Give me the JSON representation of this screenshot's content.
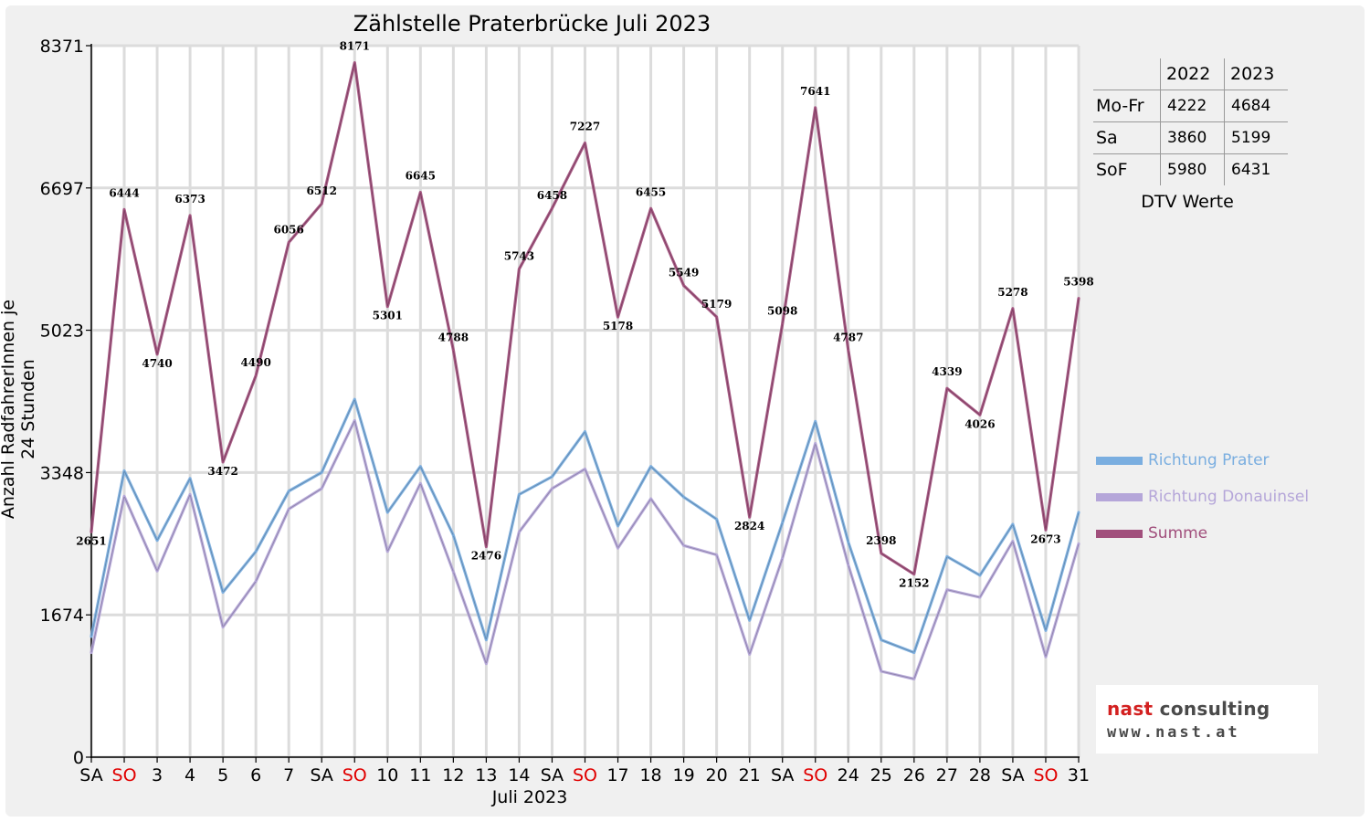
{
  "chart_data": {
    "type": "line",
    "title": "Zählstelle Praterbrücke Juli 2023",
    "xlabel": "Juli 2023",
    "ylabel": "Anzahl RadfahrerInnen je 24 Stunden",
    "ylim": [
      0,
      8371
    ],
    "yticks": [
      0,
      1674,
      3348,
      5023,
      6697,
      8371
    ],
    "grid": true,
    "legend_position": "right",
    "x": [
      1,
      2,
      3,
      4,
      5,
      6,
      7,
      8,
      9,
      10,
      11,
      12,
      13,
      14,
      15,
      16,
      17,
      18,
      19,
      20,
      21,
      22,
      23,
      24,
      25,
      26,
      27,
      28,
      29,
      30,
      31
    ],
    "xtick_labels": [
      "SA",
      "SO",
      "3",
      "4",
      "5",
      "6",
      "7",
      "SA",
      "SO",
      "10",
      "11",
      "12",
      "13",
      "14",
      "SA",
      "SO",
      "17",
      "18",
      "19",
      "20",
      "21",
      "SA",
      "SO",
      "24",
      "25",
      "26",
      "27",
      "28",
      "SA",
      "SO",
      "31"
    ],
    "xtick_colors": [
      "#000000",
      "#e00000",
      "#000000",
      "#000000",
      "#000000",
      "#000000",
      "#000000",
      "#000000",
      "#e00000",
      "#000000",
      "#000000",
      "#000000",
      "#000000",
      "#000000",
      "#000000",
      "#e00000",
      "#000000",
      "#000000",
      "#000000",
      "#000000",
      "#000000",
      "#000000",
      "#e00000",
      "#000000",
      "#000000",
      "#000000",
      "#000000",
      "#000000",
      "#000000",
      "#e00000",
      "#000000"
    ],
    "series": [
      {
        "name": "Richtung Prater",
        "color": "#7aaee0",
        "values": [
          1420,
          3370,
          2550,
          3280,
          1940,
          2420,
          3130,
          3350,
          4210,
          2880,
          3420,
          2610,
          1380,
          3090,
          3300,
          3830,
          2720,
          3420,
          3060,
          2800,
          1610,
          2760,
          3950,
          2530,
          1380,
          1230,
          2360,
          2140,
          2740,
          1490,
          2880
        ]
      },
      {
        "name": "Richtung Donauinsel",
        "color": "#b5a6d9",
        "values": [
          1230,
          3070,
          2190,
          3090,
          1530,
          2070,
          2920,
          3160,
          3960,
          2420,
          3220,
          2180,
          1100,
          2650,
          3160,
          3390,
          2460,
          3040,
          2490,
          2380,
          1210,
          2340,
          3690,
          2260,
          1010,
          920,
          1970,
          1880,
          2540,
          1180,
          2510
        ]
      },
      {
        "name": "Summe",
        "color": "#a14f7c",
        "values": [
          2651,
          6444,
          4740,
          6373,
          3472,
          4490,
          6056,
          6512,
          8171,
          5301,
          6645,
          4788,
          2476,
          5743,
          6458,
          7227,
          5178,
          6455,
          5549,
          5179,
          2824,
          5098,
          7641,
          4787,
          2398,
          2152,
          4339,
          4026,
          5278,
          2673,
          5398
        ]
      }
    ],
    "data_labels": [
      "2651",
      "6444",
      "4740",
      "6373",
      "3472",
      "4490",
      "6056",
      "6512",
      "8171",
      "5301",
      "6645",
      "4788",
      "2476",
      "5743",
      "6458",
      "7227",
      "5178",
      "6455",
      "5549",
      "5179",
      "2824",
      "5098",
      "7641",
      "4787",
      "2398",
      "2152",
      "4339",
      "4026",
      "5278",
      "2673",
      "5398"
    ]
  },
  "dtv_table": {
    "headers": [
      "2022",
      "2023"
    ],
    "rows": [
      {
        "label": "Mo-Fr",
        "v2022": "4222",
        "v2023": "4684"
      },
      {
        "label": "Sa",
        "v2022": "3860",
        "v2023": "5199"
      },
      {
        "label": "SoF",
        "v2022": "5980",
        "v2023": "6431"
      }
    ],
    "caption": "DTV Werte"
  },
  "legend": [
    {
      "label": "Richtung Prater",
      "color": "#7aaee0"
    },
    {
      "label": "Richtung Donauinsel",
      "color": "#b5a6d9"
    },
    {
      "label": "Summe",
      "color": "#a14f7c"
    }
  ],
  "logo": {
    "name_part1": "nast",
    "name_part2": " consulting",
    "url": "www.nast.at"
  }
}
